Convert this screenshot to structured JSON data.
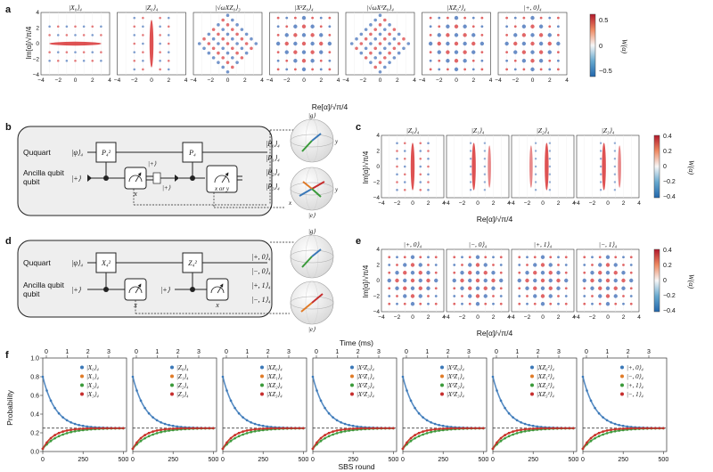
{
  "panel_letters": [
    "a",
    "b",
    "c",
    "d",
    "e",
    "f"
  ],
  "panel_a": {
    "titles": [
      "|X₀⟩₄",
      "|Z₀⟩₄",
      "|√ωXZ₀⟩₃",
      "|X²Z₀⟩₄",
      "|√ωX³Z₀⟩₄",
      "|XZ₀²⟩₄",
      "|+, 0⟩₄"
    ],
    "xlabel": "Re[α]/√π/4",
    "ylabel": "Im[α]/√π/4",
    "ticks": [
      "−4",
      "−2",
      "0",
      "2",
      "4"
    ],
    "colorbar_ticks": [
      "0.5",
      "0",
      "−0.5"
    ],
    "colorbar_label": "W(α)"
  },
  "panel_b": {
    "ququart_label": "Ququart",
    "ancilla_label": "Ancilla qubit",
    "input_state": "|ψ⟩₄",
    "ancilla_state": "|+⟩",
    "gate1": "P₄²",
    "gate2": "P₄",
    "meas1": "x",
    "meas2": "x or y",
    "plus_label": "|+⟩",
    "outputs": [
      "|P₀⟩₄",
      "|P₁⟩₄",
      "|P₂⟩₄",
      "|P₃⟩₄"
    ],
    "output_colors": [
      "#3a78b8",
      "#e07b28",
      "#3a9a3a",
      "#c62e2e"
    ]
  },
  "panel_c": {
    "titles": [
      "|Z₀⟩₄",
      "|Z₁⟩₄",
      "|Z₂⟩₄",
      "|Z₃⟩₄"
    ],
    "xlabel": "Re[α]/√π/4",
    "ylabel": "Im[α]/√π/4",
    "ticks": [
      "−4",
      "−2",
      "0",
      "2",
      "4"
    ],
    "colorbar_ticks": [
      "0.4",
      "0.2",
      "0",
      "−0.2",
      "−0.4"
    ],
    "colorbar_label": "W(α)"
  },
  "panel_d": {
    "ququart_label": "Ququart",
    "ancilla_label": "Ancilla qubit",
    "input_state": "|ψ⟩₄",
    "ancilla_state": "|+⟩",
    "gate1": "X₄²",
    "gate2": "Z₄²",
    "meas1": "x",
    "meas2": "x",
    "outputs": [
      "|+, 0⟩₄",
      "|−, 0⟩₄",
      "|+, 1⟩₄",
      "|−, 1⟩₄"
    ],
    "output_colors": [
      "#3a78b8",
      "#e07b28",
      "#3a9a3a",
      "#c62e2e"
    ]
  },
  "panel_e": {
    "titles": [
      "|+, 0⟩₄",
      "|−, 0⟩₄",
      "|+, 1⟩₄",
      "|−, 1⟩₄"
    ],
    "xlabel": "Re[α]/√π/4",
    "ylabel": "Im[α]/√π/4",
    "ticks": [
      "−4",
      "−2",
      "0",
      "2",
      "4"
    ],
    "colorbar_ticks": [
      "0.4",
      "0.2",
      "0",
      "−0.2",
      "−0.4"
    ],
    "colorbar_label": "W(α)"
  },
  "bloch_labels": {
    "north": "|g⟩",
    "south": "|e⟩",
    "x": "x",
    "y": "y"
  },
  "chart_data": {
    "type": "scatter",
    "title": "",
    "top_axis_label": "Time (ms)",
    "top_ticks": [
      "0",
      "1",
      "2",
      "3"
    ],
    "xlabel": "SBS round",
    "ylabel": "Probability",
    "x_ticks": [
      "0",
      "250",
      "500"
    ],
    "y_ticks": [
      "0.0",
      "0.2",
      "0.4",
      "0.6",
      "0.8",
      "1.0"
    ],
    "ylim": [
      0,
      1.0
    ],
    "xlim": [
      0,
      520
    ],
    "reference_line": 0.25,
    "subplots": [
      {
        "legend": [
          "|X₀⟩₄",
          "|X₁⟩₄",
          "|X₂⟩₄",
          "|X₃⟩₄"
        ],
        "decay_rate": 0.0125
      },
      {
        "legend": [
          "|Z₀⟩₄",
          "|Z₁⟩₄",
          "|Z₂⟩₄",
          "|Z₃⟩₄"
        ],
        "decay_rate": 0.0125
      },
      {
        "legend": [
          "|XZ₀⟩₄",
          "|XZ₁⟩₄",
          "|XZ₂⟩₄",
          "|XZ₃⟩₄"
        ],
        "decay_rate": 0.0125
      },
      {
        "legend": [
          "|X²Z₀⟩₄",
          "|X²Z₁⟩₄",
          "|X²Z₂⟩₄",
          "|X²Z₃⟩₄"
        ],
        "decay_rate": 0.0125
      },
      {
        "legend": [
          "|X³Z₀⟩₄",
          "|X³Z₁⟩₄",
          "|X³Z₂⟩₄",
          "|X³Z₃⟩₄"
        ],
        "decay_rate": 0.0125
      },
      {
        "legend": [
          "|XZ₀²⟩₄",
          "|XZ₁²⟩₄",
          "|XZ₂²⟩₄",
          "|XZ₃²⟩₄"
        ],
        "decay_rate": 0.0125
      },
      {
        "legend": [
          "|+, 0⟩₄",
          "|−, 0⟩₄",
          "|+, 1⟩₄",
          "|−, 1⟩₄"
        ],
        "decay_rate": 0.0125
      }
    ],
    "series_colors": [
      "#3a78b8",
      "#e07b28",
      "#3a9a3a",
      "#c62e2e"
    ],
    "initial_values": [
      0.8,
      0.03,
      0.03,
      0.03
    ],
    "steady_value": 0.25
  }
}
